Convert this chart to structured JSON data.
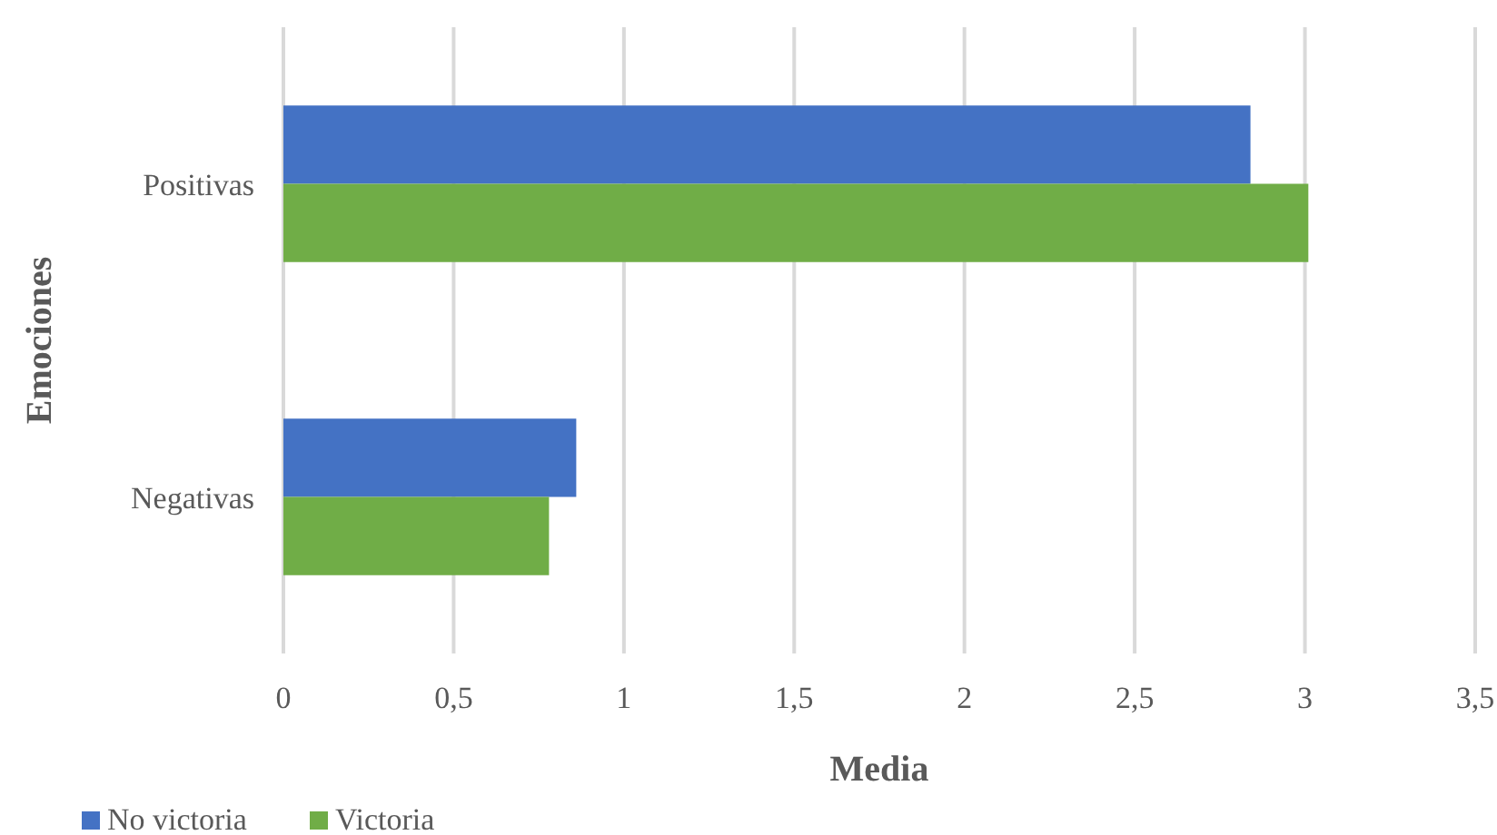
{
  "chart_data": {
    "type": "bar",
    "orientation": "horizontal",
    "xlabel": "Media",
    "ylabel": "Emociones",
    "categories": [
      "Positivas",
      "Negativas"
    ],
    "series": [
      {
        "name": "No victoria",
        "color": "#4472c4",
        "values": [
          2.84,
          0.86
        ]
      },
      {
        "name": "Victoria",
        "color": "#70ad47",
        "values": [
          3.01,
          0.78
        ]
      }
    ],
    "xlim": [
      0,
      3.5
    ],
    "xticks": [
      0,
      {
        "value": 0.5,
        "label": "0,5"
      },
      1,
      {
        "value": 1.5,
        "label": "1,5"
      },
      2,
      {
        "value": 2.5,
        "label": "2,5"
      },
      3,
      {
        "value": 3.5,
        "label": "3,5"
      }
    ],
    "grid": "x",
    "legend": "bottom left"
  }
}
